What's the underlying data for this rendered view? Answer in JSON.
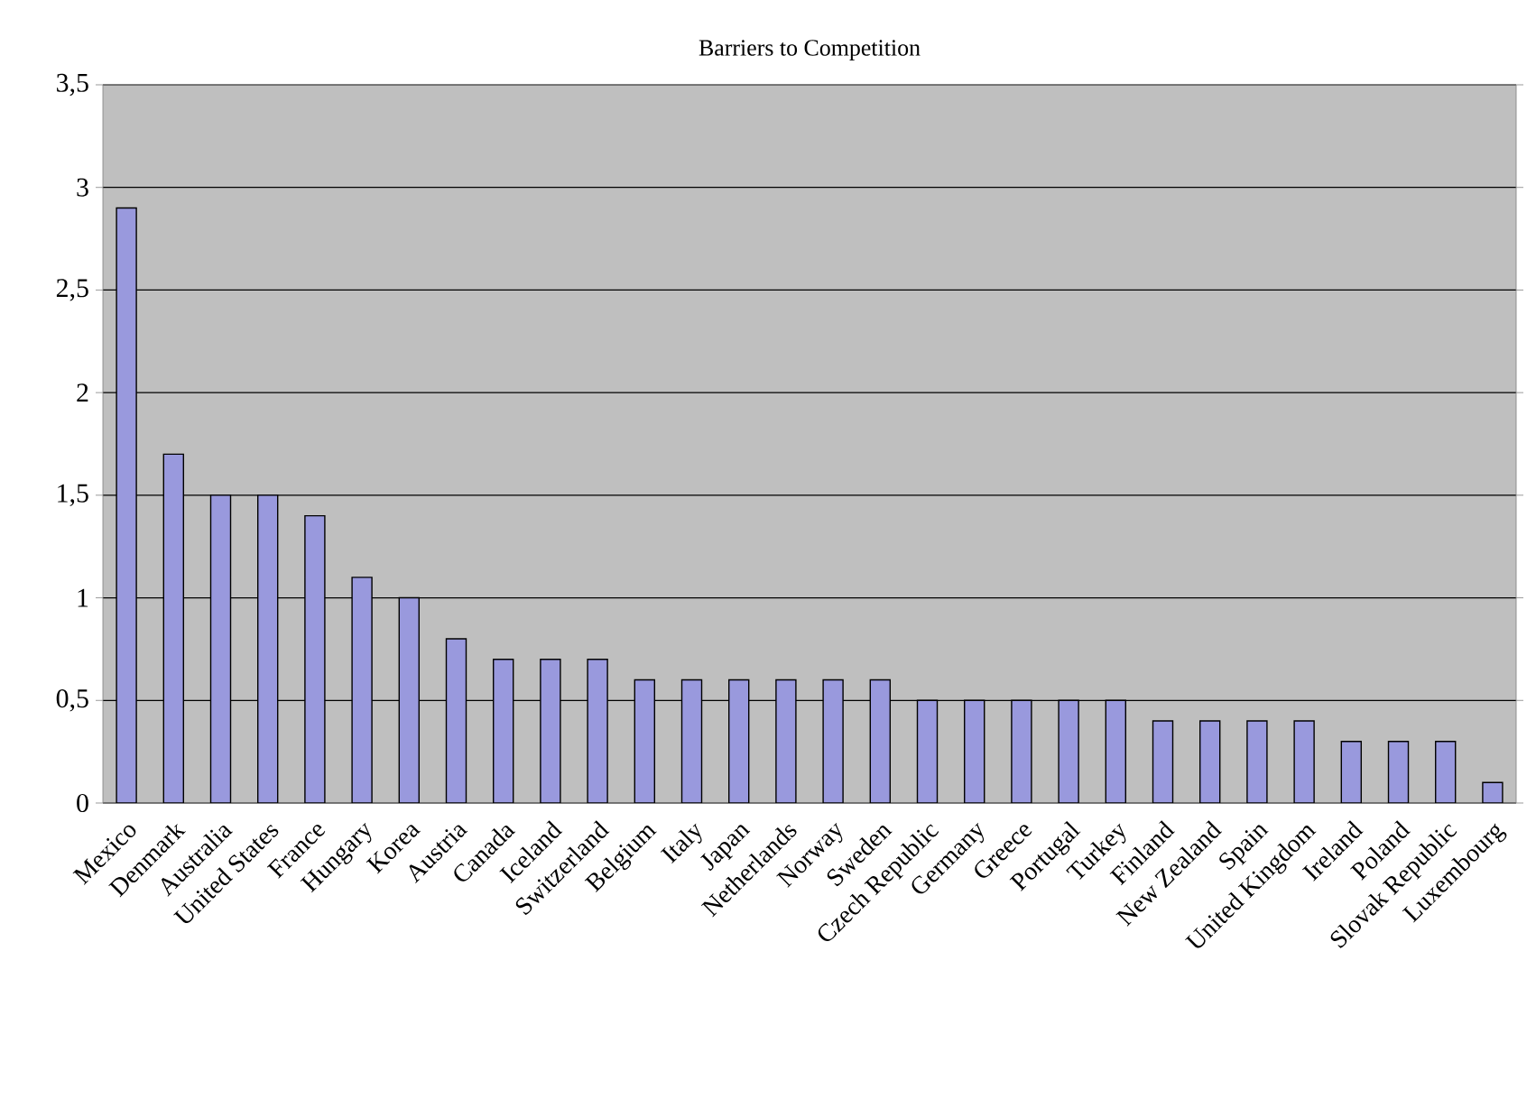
{
  "chart_data": {
    "type": "bar",
    "title": "Barriers to Competition",
    "categories": [
      "Mexico",
      "Denmark",
      "Australia",
      "United States",
      "France",
      "Hungary",
      "Korea",
      "Austria",
      "Canada",
      "Iceland",
      "Switzerland",
      "Belgium",
      "Italy",
      "Japan",
      "Netherlands",
      "Norway",
      "Sweden",
      "Czech Republic",
      "Germany",
      "Greece",
      "Portugal",
      "Turkey",
      "Finland",
      "New Zealand",
      "Spain",
      "United Kingdom",
      "Ireland",
      "Poland",
      "Slovak Republic",
      "Luxembourg"
    ],
    "values": [
      2.9,
      1.7,
      1.5,
      1.5,
      1.4,
      1.1,
      1.0,
      0.8,
      0.7,
      0.7,
      0.7,
      0.6,
      0.6,
      0.6,
      0.6,
      0.6,
      0.6,
      0.5,
      0.5,
      0.5,
      0.5,
      0.5,
      0.4,
      0.4,
      0.4,
      0.4,
      0.3,
      0.3,
      0.3,
      0.1
    ],
    "color": "#9999dd",
    "ylim": [
      0,
      3.5
    ],
    "yticks": [
      0,
      {
        "value": 0.5,
        "label": "0,5"
      },
      1,
      {
        "value": 1.5,
        "label": "1,5"
      },
      2,
      {
        "value": 2.5,
        "label": "2,5"
      },
      3,
      {
        "value": 3.5,
        "label": "3,5"
      }
    ],
    "grid": "y"
  }
}
